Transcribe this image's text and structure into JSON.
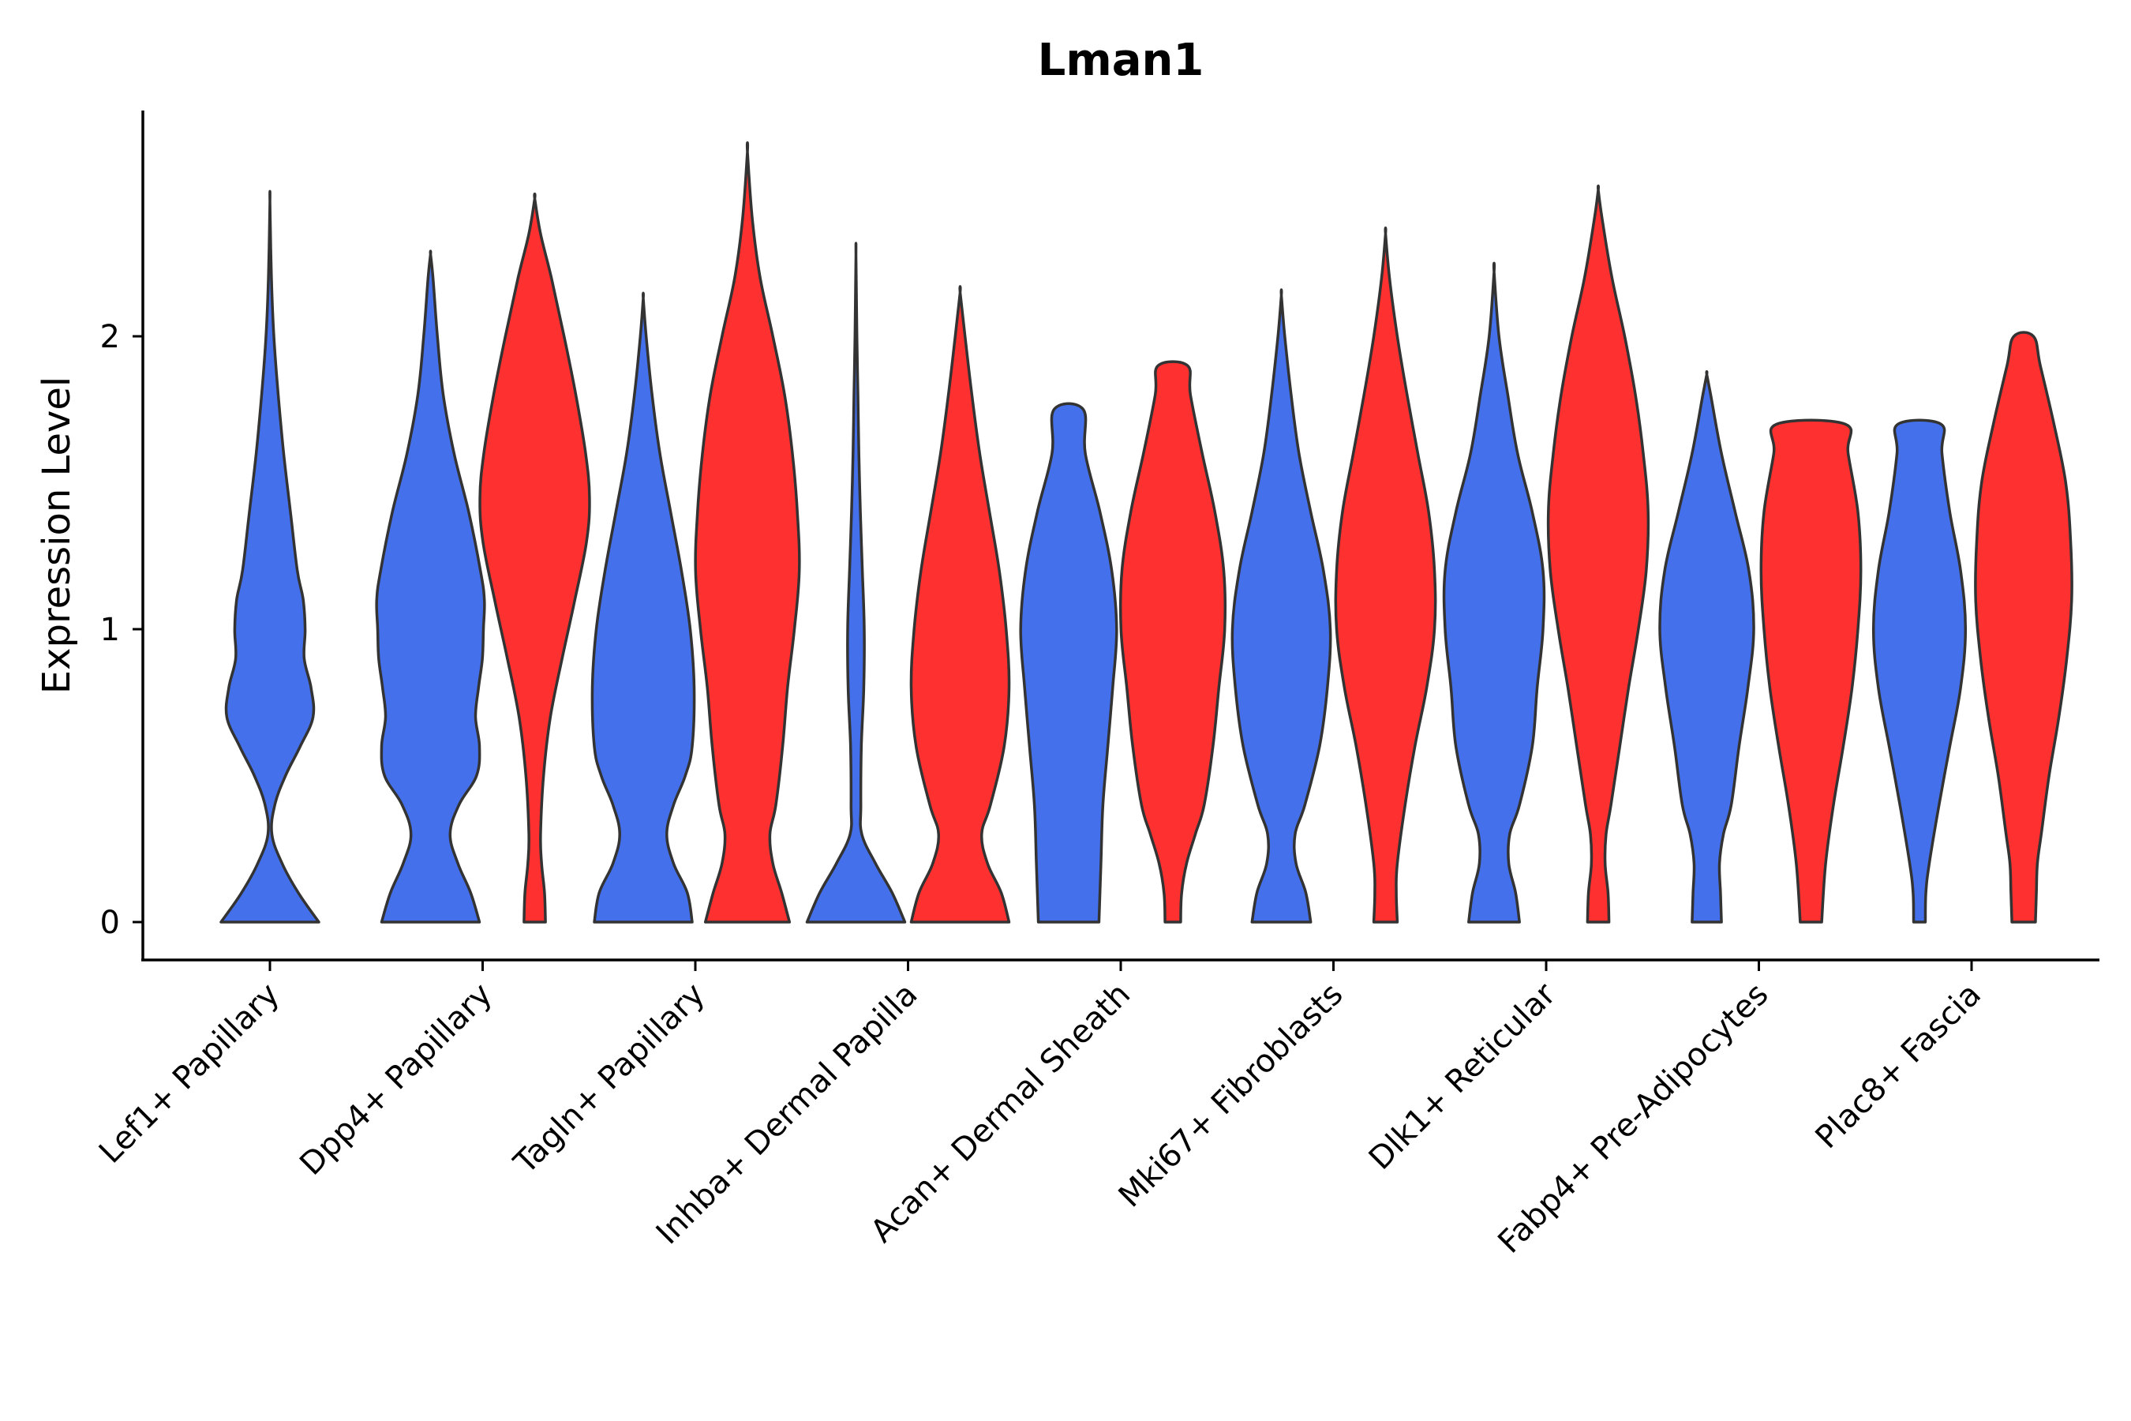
{
  "chart_data": {
    "type": "violin",
    "title": "Lman1",
    "xlabel": "",
    "ylabel": "Expression Level",
    "ylim": [
      -0.13,
      2.75
    ],
    "yticks": [
      0,
      1,
      2
    ],
    "categories": [
      "Lef1+ Papillary",
      "Dpp4+ Papillary",
      "Tagln+ Papillary",
      "Inhba+ Dermal Papilla",
      "Acan+ Dermal Sheath",
      "Mki67+ Fibroblasts",
      "Dlk1+ Reticular",
      "Fabp4+ Pre-Adipocytes",
      "Plac8+ Fascia"
    ],
    "groups": [
      {
        "name": "group-blue",
        "color": "#4470EB"
      },
      {
        "name": "group-red",
        "color": "#FF3030"
      }
    ],
    "violins": [
      {
        "category": 0,
        "group": 0,
        "max": 2.46,
        "profile": [
          [
            0,
            1.0
          ],
          [
            0.1,
            0.58
          ],
          [
            0.2,
            0.25
          ],
          [
            0.3,
            0.04
          ],
          [
            0.4,
            0.1
          ],
          [
            0.5,
            0.32
          ],
          [
            0.6,
            0.62
          ],
          [
            0.7,
            0.88
          ],
          [
            0.8,
            0.84
          ],
          [
            0.9,
            0.7
          ],
          [
            1.0,
            0.72
          ],
          [
            1.1,
            0.68
          ],
          [
            1.2,
            0.56
          ],
          [
            1.4,
            0.42
          ],
          [
            1.6,
            0.28
          ],
          [
            1.8,
            0.17
          ],
          [
            2.0,
            0.08
          ],
          [
            2.2,
            0.03
          ],
          [
            2.46,
            0.0
          ]
        ]
      },
      {
        "category": 1,
        "group": 0,
        "max": 2.28,
        "profile": [
          [
            0,
            1.0
          ],
          [
            0.1,
            0.82
          ],
          [
            0.2,
            0.56
          ],
          [
            0.3,
            0.4
          ],
          [
            0.4,
            0.58
          ],
          [
            0.5,
            0.94
          ],
          [
            0.6,
            1.0
          ],
          [
            0.7,
            0.92
          ],
          [
            0.8,
            0.98
          ],
          [
            0.9,
            1.06
          ],
          [
            1.0,
            1.08
          ],
          [
            1.1,
            1.1
          ],
          [
            1.2,
            1.02
          ],
          [
            1.4,
            0.78
          ],
          [
            1.6,
            0.48
          ],
          [
            1.8,
            0.26
          ],
          [
            2.0,
            0.14
          ],
          [
            2.2,
            0.05
          ],
          [
            2.28,
            0.0
          ]
        ]
      },
      {
        "category": 1,
        "group": 1,
        "max": 2.47,
        "profile": [
          [
            0,
            0.22
          ],
          [
            0.1,
            0.2
          ],
          [
            0.2,
            0.14
          ],
          [
            0.3,
            0.12
          ],
          [
            0.5,
            0.18
          ],
          [
            0.7,
            0.32
          ],
          [
            0.9,
            0.56
          ],
          [
            1.1,
            0.82
          ],
          [
            1.3,
            1.06
          ],
          [
            1.45,
            1.12
          ],
          [
            1.6,
            1.04
          ],
          [
            1.8,
            0.84
          ],
          [
            2.0,
            0.6
          ],
          [
            2.2,
            0.34
          ],
          [
            2.35,
            0.12
          ],
          [
            2.47,
            0.0
          ]
        ]
      },
      {
        "category": 2,
        "group": 0,
        "max": 2.13,
        "profile": [
          [
            0,
            1.0
          ],
          [
            0.1,
            0.9
          ],
          [
            0.2,
            0.62
          ],
          [
            0.3,
            0.48
          ],
          [
            0.4,
            0.62
          ],
          [
            0.5,
            0.86
          ],
          [
            0.6,
            1.0
          ],
          [
            0.8,
            1.04
          ],
          [
            1.0,
            0.96
          ],
          [
            1.2,
            0.78
          ],
          [
            1.4,
            0.56
          ],
          [
            1.6,
            0.34
          ],
          [
            1.8,
            0.18
          ],
          [
            2.0,
            0.06
          ],
          [
            2.13,
            0.0
          ]
        ]
      },
      {
        "category": 2,
        "group": 1,
        "max": 2.63,
        "profile": [
          [
            0,
            0.86
          ],
          [
            0.1,
            0.7
          ],
          [
            0.2,
            0.52
          ],
          [
            0.3,
            0.46
          ],
          [
            0.4,
            0.58
          ],
          [
            0.6,
            0.72
          ],
          [
            0.8,
            0.82
          ],
          [
            1.0,
            0.96
          ],
          [
            1.2,
            1.06
          ],
          [
            1.4,
            1.02
          ],
          [
            1.6,
            0.92
          ],
          [
            1.8,
            0.76
          ],
          [
            2.0,
            0.52
          ],
          [
            2.2,
            0.26
          ],
          [
            2.4,
            0.1
          ],
          [
            2.63,
            0.0
          ]
        ]
      },
      {
        "category": 3,
        "group": 0,
        "max": 2.28,
        "profile": [
          [
            0,
            1.0
          ],
          [
            0.1,
            0.74
          ],
          [
            0.2,
            0.4
          ],
          [
            0.3,
            0.12
          ],
          [
            0.4,
            0.1
          ],
          [
            0.6,
            0.11
          ],
          [
            0.8,
            0.16
          ],
          [
            1.0,
            0.17
          ],
          [
            1.2,
            0.13
          ],
          [
            1.4,
            0.09
          ],
          [
            1.6,
            0.06
          ],
          [
            1.8,
            0.04
          ],
          [
            2.0,
            0.02
          ],
          [
            2.28,
            0.0
          ]
        ]
      },
      {
        "category": 3,
        "group": 1,
        "max": 2.15,
        "profile": [
          [
            0,
            1.0
          ],
          [
            0.1,
            0.84
          ],
          [
            0.2,
            0.56
          ],
          [
            0.3,
            0.44
          ],
          [
            0.4,
            0.62
          ],
          [
            0.6,
            0.9
          ],
          [
            0.8,
            1.0
          ],
          [
            1.0,
            0.94
          ],
          [
            1.2,
            0.8
          ],
          [
            1.4,
            0.6
          ],
          [
            1.6,
            0.4
          ],
          [
            1.8,
            0.24
          ],
          [
            2.0,
            0.1
          ],
          [
            2.15,
            0.0
          ]
        ]
      },
      {
        "category": 4,
        "group": 0,
        "max": 1.75,
        "profile": [
          [
            0,
            0.62
          ],
          [
            0.2,
            0.66
          ],
          [
            0.4,
            0.7
          ],
          [
            0.6,
            0.8
          ],
          [
            0.8,
            0.9
          ],
          [
            1.0,
            0.98
          ],
          [
            1.2,
            0.88
          ],
          [
            1.4,
            0.64
          ],
          [
            1.6,
            0.34
          ],
          [
            1.75,
            0.3
          ]
        ]
      },
      {
        "category": 4,
        "group": 1,
        "max": 1.9,
        "profile": [
          [
            0,
            0.16
          ],
          [
            0.1,
            0.18
          ],
          [
            0.2,
            0.28
          ],
          [
            0.3,
            0.46
          ],
          [
            0.4,
            0.64
          ],
          [
            0.6,
            0.82
          ],
          [
            0.8,
            0.94
          ],
          [
            1.0,
            1.06
          ],
          [
            1.2,
            1.04
          ],
          [
            1.4,
            0.86
          ],
          [
            1.6,
            0.6
          ],
          [
            1.8,
            0.36
          ],
          [
            1.9,
            0.3
          ]
        ]
      },
      {
        "category": 5,
        "group": 0,
        "max": 2.14,
        "profile": [
          [
            0,
            0.6
          ],
          [
            0.1,
            0.5
          ],
          [
            0.2,
            0.3
          ],
          [
            0.3,
            0.28
          ],
          [
            0.4,
            0.48
          ],
          [
            0.6,
            0.78
          ],
          [
            0.8,
            0.94
          ],
          [
            1.0,
            1.0
          ],
          [
            1.2,
            0.86
          ],
          [
            1.4,
            0.6
          ],
          [
            1.6,
            0.36
          ],
          [
            1.8,
            0.2
          ],
          [
            2.0,
            0.07
          ],
          [
            2.14,
            0.0
          ]
        ]
      },
      {
        "category": 5,
        "group": 1,
        "max": 2.35,
        "profile": [
          [
            0,
            0.24
          ],
          [
            0.1,
            0.22
          ],
          [
            0.2,
            0.24
          ],
          [
            0.4,
            0.4
          ],
          [
            0.6,
            0.6
          ],
          [
            0.8,
            0.84
          ],
          [
            1.0,
            1.0
          ],
          [
            1.2,
            1.0
          ],
          [
            1.4,
            0.88
          ],
          [
            1.6,
            0.66
          ],
          [
            1.8,
            0.44
          ],
          [
            2.0,
            0.24
          ],
          [
            2.2,
            0.08
          ],
          [
            2.35,
            0.0
          ]
        ]
      },
      {
        "category": 6,
        "group": 0,
        "max": 2.22,
        "profile": [
          [
            0,
            0.52
          ],
          [
            0.1,
            0.44
          ],
          [
            0.2,
            0.3
          ],
          [
            0.3,
            0.32
          ],
          [
            0.4,
            0.52
          ],
          [
            0.6,
            0.78
          ],
          [
            0.8,
            0.88
          ],
          [
            1.0,
            1.0
          ],
          [
            1.2,
            1.0
          ],
          [
            1.4,
            0.78
          ],
          [
            1.6,
            0.48
          ],
          [
            1.8,
            0.28
          ],
          [
            2.0,
            0.1
          ],
          [
            2.22,
            0.0
          ]
        ]
      },
      {
        "category": 6,
        "group": 1,
        "max": 2.5,
        "profile": [
          [
            0,
            0.22
          ],
          [
            0.1,
            0.2
          ],
          [
            0.2,
            0.14
          ],
          [
            0.3,
            0.16
          ],
          [
            0.4,
            0.26
          ],
          [
            0.6,
            0.44
          ],
          [
            0.8,
            0.62
          ],
          [
            1.0,
            0.82
          ],
          [
            1.2,
            0.98
          ],
          [
            1.4,
            1.02
          ],
          [
            1.6,
            0.92
          ],
          [
            1.8,
            0.76
          ],
          [
            2.0,
            0.54
          ],
          [
            2.2,
            0.28
          ],
          [
            2.4,
            0.08
          ],
          [
            2.5,
            0.0
          ]
        ]
      },
      {
        "category": 7,
        "group": 0,
        "max": 1.87,
        "profile": [
          [
            0,
            0.3
          ],
          [
            0.1,
            0.28
          ],
          [
            0.2,
            0.26
          ],
          [
            0.3,
            0.34
          ],
          [
            0.4,
            0.5
          ],
          [
            0.6,
            0.66
          ],
          [
            0.8,
            0.84
          ],
          [
            1.0,
            0.96
          ],
          [
            1.2,
            0.86
          ],
          [
            1.4,
            0.58
          ],
          [
            1.6,
            0.3
          ],
          [
            1.8,
            0.08
          ],
          [
            1.87,
            0.0
          ]
        ]
      },
      {
        "category": 7,
        "group": 1,
        "max": 1.7,
        "profile": [
          [
            0,
            0.22
          ],
          [
            0.2,
            0.3
          ],
          [
            0.4,
            0.46
          ],
          [
            0.6,
            0.66
          ],
          [
            0.8,
            0.84
          ],
          [
            1.0,
            0.96
          ],
          [
            1.2,
            1.02
          ],
          [
            1.4,
            0.96
          ],
          [
            1.6,
            0.76
          ],
          [
            1.7,
            0.7
          ]
        ]
      },
      {
        "category": 8,
        "group": 0,
        "max": 1.7,
        "profile": [
          [
            0,
            0.12
          ],
          [
            0.1,
            0.13
          ],
          [
            0.2,
            0.2
          ],
          [
            0.4,
            0.4
          ],
          [
            0.6,
            0.62
          ],
          [
            0.8,
            0.84
          ],
          [
            1.0,
            0.94
          ],
          [
            1.2,
            0.84
          ],
          [
            1.4,
            0.62
          ],
          [
            1.6,
            0.46
          ],
          [
            1.7,
            0.44
          ]
        ]
      },
      {
        "category": 8,
        "group": 1,
        "max": 2.0,
        "profile": [
          [
            0,
            0.24
          ],
          [
            0.1,
            0.26
          ],
          [
            0.2,
            0.28
          ],
          [
            0.3,
            0.36
          ],
          [
            0.5,
            0.52
          ],
          [
            0.7,
            0.72
          ],
          [
            0.9,
            0.88
          ],
          [
            1.1,
            0.98
          ],
          [
            1.3,
            0.96
          ],
          [
            1.5,
            0.86
          ],
          [
            1.7,
            0.62
          ],
          [
            1.9,
            0.34
          ],
          [
            2.0,
            0.2
          ]
        ]
      }
    ]
  }
}
